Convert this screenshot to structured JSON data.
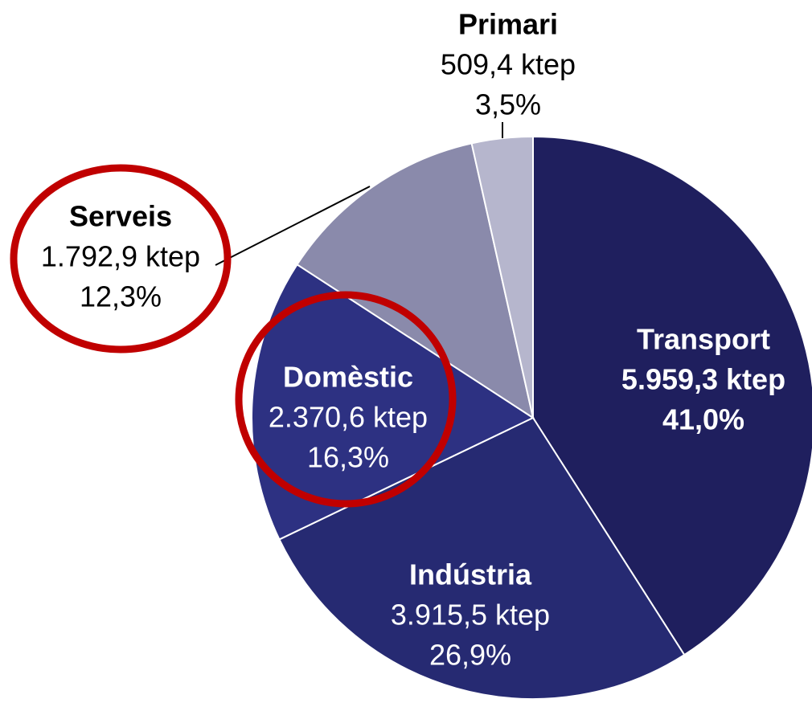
{
  "chart_data": {
    "type": "pie",
    "categories": [
      "Transport",
      "Indústria",
      "Domèstic",
      "Serveis",
      "Primari"
    ],
    "values": [
      5959.3,
      3915.5,
      2370.6,
      1792.9,
      509.4
    ],
    "value_labels": [
      "5.959,3 ktep",
      "3.915,5 ktep",
      "2.370,6 ktep",
      "1.792,9 ktep",
      "509,4 ktep"
    ],
    "percentages": [
      41.0,
      26.9,
      16.3,
      12.3,
      3.5
    ],
    "percentage_labels": [
      "41,0%",
      "26,9%",
      "16,3%",
      "12,3%",
      "3,5%"
    ],
    "colors": [
      "#1f1f5e",
      "#262a72",
      "#2d3182",
      "#8a8aab",
      "#b6b6cd"
    ]
  }
}
